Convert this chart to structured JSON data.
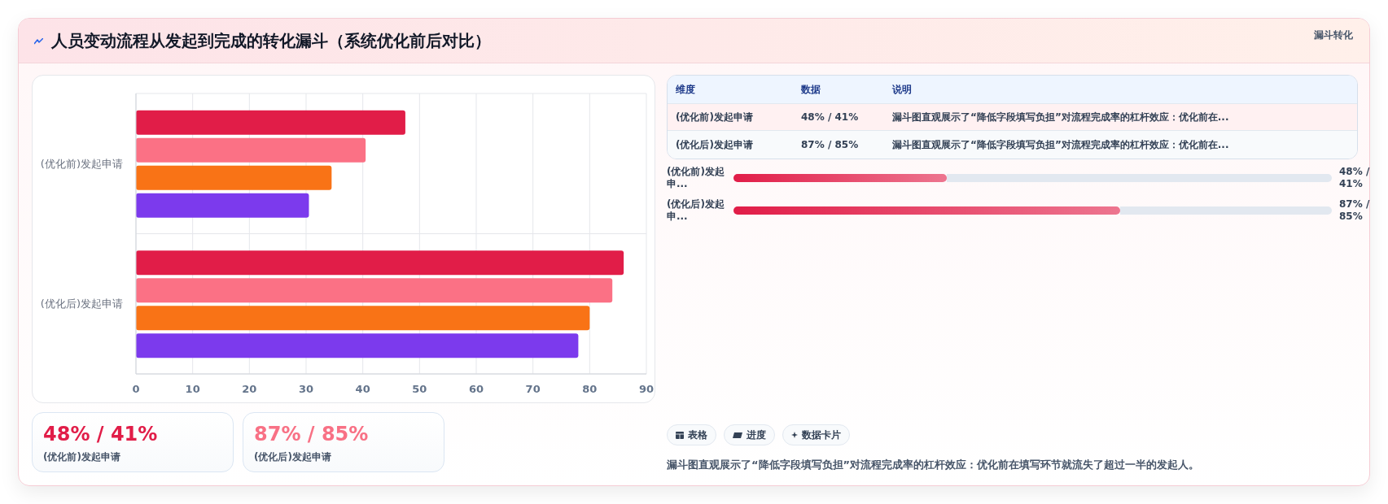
{
  "chart_data": [
    {
      "type": "other",
      "title": "人员变动流程从发起到完成的转化漏斗（系统优化前后对比）",
      "annotations": [
        "漏斗转化"
      ]
    },
    {
      "type": "bar",
      "orientation": "horizontal",
      "categories": [
        "(优化前)发起申请",
        "(优化后)发起申请"
      ],
      "series": [
        {
          "color": "#e11d48",
          "values": [
            47.5,
            86
          ]
        },
        {
          "color": "#fb7185",
          "values": [
            40.5,
            84
          ]
        },
        {
          "color": "#f97316",
          "values": [
            34.5,
            80
          ]
        },
        {
          "color": "#7c3aed",
          "values": [
            30.5,
            78
          ]
        }
      ],
      "xlim": [
        0,
        90
      ],
      "xticks": [
        0,
        10,
        20,
        30,
        40,
        50,
        60,
        70,
        80,
        90
      ],
      "grid": true
    },
    {
      "type": "other",
      "annotations": [
        "维度",
        "数据",
        "说明",
        "(优化前)发起申请",
        "48% / 41%",
        "漏斗图直观展示了“降低字段填写负担”对流程完成率的杠杆效应：优化前在...",
        "(优化后)发起申请",
        "87% / 85%",
        "漏斗图直观展示了“降低字段填写负担”对流程完成率的杠杆效应：优化前在..."
      ]
    },
    {
      "type": "bar",
      "orientation": "horizontal",
      "tick_labels": "y",
      "categories": [
        "(优化前)发起申...",
        "(优化后)发起申..."
      ],
      "values": [
        48,
        87
      ],
      "color": "#e11d48",
      "value_labels": [
        "48% / 41%",
        "87% / 85%"
      ]
    },
    {
      "type": "other",
      "annotations": [
        "48% / 41%",
        "(优化前)发起申请",
        "87% / 85%",
        "(优化后)发起申请"
      ],
      "colors": [
        "#e11d48",
        "#f87185"
      ]
    },
    {
      "type": "other",
      "categories": [
        "表格",
        "进度",
        "数据卡片"
      ],
      "annotations": [
        "漏斗图直观展示了“降低字段填写负担”对流程完成率的杠杆效应：优化前在填写环节就流失了超过一半的发起人。"
      ]
    }
  ]
}
